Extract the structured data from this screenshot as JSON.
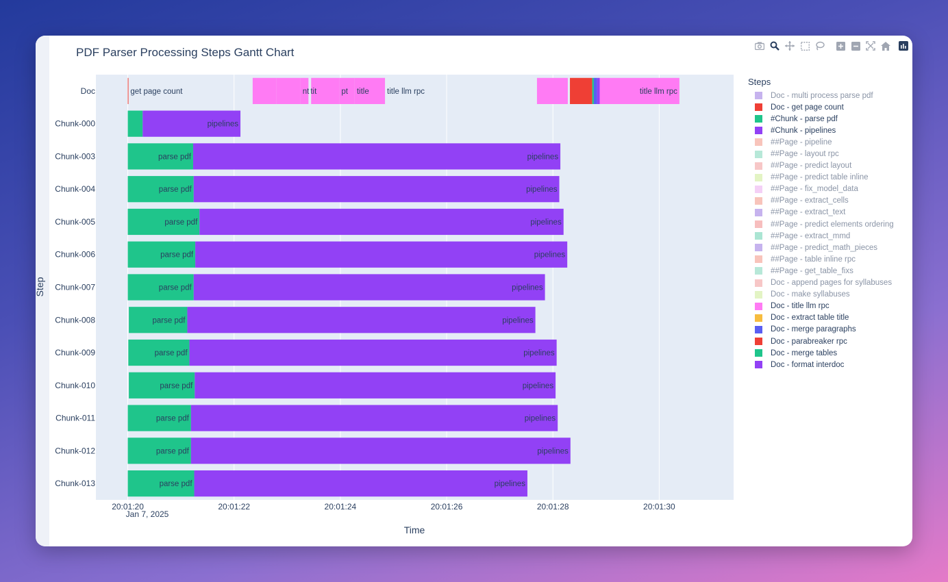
{
  "modebar": {
    "icons": [
      "camera-icon",
      "zoom-icon",
      "pan-icon",
      "box-select-icon",
      "lasso-select-icon",
      "zoom-in-icon",
      "zoom-out-icon",
      "autoscale-icon",
      "reset-axes-icon",
      "plotly-logo-icon"
    ]
  },
  "chart_data": {
    "type": "gantt",
    "title": "PDF Parser Processing Steps Gantt Chart",
    "xlabel": "Time",
    "ylabel": "Step",
    "x_date": "Jan 7, 2025",
    "xlim": [
      19.4,
      31.4
    ],
    "x_ticks": [
      {
        "value": 20,
        "label": "20:01:20"
      },
      {
        "value": 22,
        "label": "20:01:22"
      },
      {
        "value": 24,
        "label": "20:01:24"
      },
      {
        "value": 26,
        "label": "20:01:26"
      },
      {
        "value": 28,
        "label": "20:01:28"
      },
      {
        "value": 30,
        "label": "20:01:30"
      }
    ],
    "rows": [
      "Doc",
      "Chunk-000",
      "Chunk-003",
      "Chunk-004",
      "Chunk-005",
      "Chunk-006",
      "Chunk-007",
      "Chunk-008",
      "Chunk-009",
      "Chunk-010",
      "Chunk-011",
      "Chunk-012",
      "Chunk-013"
    ],
    "legend_title": "Steps",
    "legend_position": "right",
    "legend": [
      {
        "label": "Doc - multi process parse pdf",
        "color": "#b39ae8",
        "hidden": true
      },
      {
        "label": "Doc - get page count",
        "color": "#ef3f35",
        "hidden": false
      },
      {
        "label": "#Chunk - parse pdf",
        "color": "#1fc58b",
        "hidden": false
      },
      {
        "label": "#Chunk - pipelines",
        "color": "#9241f5",
        "hidden": false
      },
      {
        "label": "##Page - pipeline",
        "color": "#f5b0a4",
        "hidden": true
      },
      {
        "label": "##Page - layout rpc",
        "color": "#9fe0cb",
        "hidden": true
      },
      {
        "label": "##Page - predict layout",
        "color": "#f4b4b4",
        "hidden": true
      },
      {
        "label": "##Page - predict table inline",
        "color": "#d9f0b0",
        "hidden": true
      },
      {
        "label": "##Page - fix_model_data",
        "color": "#f0c0f3",
        "hidden": true
      },
      {
        "label": "##Page - extract_cells",
        "color": "#f5b0a4",
        "hidden": true
      },
      {
        "label": "##Page - extract_text",
        "color": "#b39ae8",
        "hidden": true
      },
      {
        "label": "##Page - predict elements ordering",
        "color": "#f4a8a8",
        "hidden": true
      },
      {
        "label": "##Page - extract_mmd",
        "color": "#8fdcc4",
        "hidden": true
      },
      {
        "label": "##Page - predict_math_pieces",
        "color": "#b39ae8",
        "hidden": true
      },
      {
        "label": "##Page - table inline rpc",
        "color": "#f5b0a4",
        "hidden": true
      },
      {
        "label": "##Page - get_table_fixs",
        "color": "#9fe0cb",
        "hidden": true
      },
      {
        "label": "Doc - append pages for syllabuses",
        "color": "#f4b4b4",
        "hidden": true
      },
      {
        "label": "Doc - make syllabuses",
        "color": "#d9f0b0",
        "hidden": true
      },
      {
        "label": "Doc - title llm rpc",
        "color": "#ff7bf4",
        "hidden": false
      },
      {
        "label": "Doc - extract table title",
        "color": "#f7bc3f",
        "hidden": false
      },
      {
        "label": "Doc - merge paragraphs",
        "color": "#5a5ef2",
        "hidden": false
      },
      {
        "label": "Doc - parabreaker rpc",
        "color": "#ef3f35",
        "hidden": false
      },
      {
        "label": "Doc - merge tables",
        "color": "#1fc58b",
        "hidden": false
      },
      {
        "label": "Doc - format interdoc",
        "color": "#9241f5",
        "hidden": false
      }
    ],
    "bars": [
      {
        "row": "Doc",
        "start": 20.0,
        "end": 20.01,
        "step": "Doc - get page count",
        "color": "#ef3f35",
        "label": "get page count",
        "label_pos": "outside"
      },
      {
        "row": "Doc",
        "start": 22.35,
        "end": 22.8,
        "step": "Doc - title llm rpc",
        "color": "#ff7bf4",
        "label": "",
        "label_pos": "none"
      },
      {
        "row": "Doc",
        "start": 22.8,
        "end": 23.25,
        "step": "Doc - title llm rpc",
        "color": "#ff7bf4",
        "label": "nt",
        "label_pos": "outside"
      },
      {
        "row": "Doc",
        "start": 23.25,
        "end": 23.4,
        "step": "Doc - title llm rpc",
        "color": "#ff7bf4",
        "label": "tit",
        "label_pos": "outside"
      },
      {
        "row": "Doc",
        "start": 23.45,
        "end": 23.98,
        "step": "Doc - title llm rpc",
        "color": "#ff7bf4",
        "label": "pt",
        "label_pos": "outside"
      },
      {
        "row": "Doc",
        "start": 23.98,
        "end": 24.27,
        "step": "Doc - title llm rpc",
        "color": "#ff7bf4",
        "label": "title",
        "label_pos": "outside"
      },
      {
        "row": "Doc",
        "start": 24.27,
        "end": 24.84,
        "step": "Doc - title llm rpc",
        "color": "#ff7bf4",
        "label": "title llm rpc",
        "label_pos": "outside"
      },
      {
        "row": "Doc",
        "start": 27.7,
        "end": 28.28,
        "step": "Doc - title llm rpc",
        "color": "#ff7bf4",
        "label": "",
        "label_pos": "none"
      },
      {
        "row": "Doc",
        "start": 28.32,
        "end": 28.74,
        "step": "Doc - parabreaker rpc",
        "color": "#ef3f35",
        "label": "",
        "label_pos": "none"
      },
      {
        "row": "Doc",
        "start": 28.74,
        "end": 28.77,
        "step": "Doc - merge tables",
        "color": "#1fc58b",
        "label": "",
        "label_pos": "none"
      },
      {
        "row": "Doc",
        "start": 28.77,
        "end": 28.83,
        "step": "Doc - merge paragraphs",
        "color": "#5a5ef2",
        "label": "",
        "label_pos": "none"
      },
      {
        "row": "Doc",
        "start": 28.83,
        "end": 28.88,
        "step": "Doc - format interdoc",
        "color": "#9241f5",
        "label": "",
        "label_pos": "none"
      },
      {
        "row": "Doc",
        "start": 28.88,
        "end": 30.38,
        "step": "Doc - title llm rpc",
        "color": "#ff7bf4",
        "label": "title llm rpc",
        "label_pos": "inside"
      },
      {
        "row": "Chunk-000",
        "start": 20.0,
        "end": 20.28,
        "step": "#Chunk - parse pdf",
        "color": "#1fc58b",
        "label": "",
        "label_pos": "none"
      },
      {
        "row": "Chunk-000",
        "start": 20.28,
        "end": 22.12,
        "step": "#Chunk - pipelines",
        "color": "#9241f5",
        "label": "pipelines",
        "label_pos": "inside"
      },
      {
        "row": "Chunk-003",
        "start": 20.0,
        "end": 21.23,
        "step": "#Chunk - parse pdf",
        "color": "#1fc58b",
        "label": "parse pdf",
        "label_pos": "inside"
      },
      {
        "row": "Chunk-003",
        "start": 21.23,
        "end": 28.14,
        "step": "#Chunk - pipelines",
        "color": "#9241f5",
        "label": "pipelines",
        "label_pos": "inside"
      },
      {
        "row": "Chunk-004",
        "start": 20.0,
        "end": 21.24,
        "step": "#Chunk - parse pdf",
        "color": "#1fc58b",
        "label": "parse pdf",
        "label_pos": "inside"
      },
      {
        "row": "Chunk-004",
        "start": 21.24,
        "end": 28.12,
        "step": "#Chunk - pipelines",
        "color": "#9241f5",
        "label": "pipelines",
        "label_pos": "inside"
      },
      {
        "row": "Chunk-005",
        "start": 20.0,
        "end": 21.35,
        "step": "#Chunk - parse pdf",
        "color": "#1fc58b",
        "label": "parse pdf",
        "label_pos": "inside"
      },
      {
        "row": "Chunk-005",
        "start": 21.35,
        "end": 28.2,
        "step": "#Chunk - pipelines",
        "color": "#9241f5",
        "label": "pipelines",
        "label_pos": "inside"
      },
      {
        "row": "Chunk-006",
        "start": 20.0,
        "end": 21.27,
        "step": "#Chunk - parse pdf",
        "color": "#1fc58b",
        "label": "parse pdf",
        "label_pos": "inside"
      },
      {
        "row": "Chunk-006",
        "start": 21.27,
        "end": 28.27,
        "step": "#Chunk - pipelines",
        "color": "#9241f5",
        "label": "pipelines",
        "label_pos": "inside"
      },
      {
        "row": "Chunk-007",
        "start": 20.0,
        "end": 21.24,
        "step": "#Chunk - parse pdf",
        "color": "#1fc58b",
        "label": "parse pdf",
        "label_pos": "inside"
      },
      {
        "row": "Chunk-007",
        "start": 21.24,
        "end": 27.85,
        "step": "#Chunk - pipelines",
        "color": "#9241f5",
        "label": "pipelines",
        "label_pos": "inside"
      },
      {
        "row": "Chunk-008",
        "start": 20.02,
        "end": 21.12,
        "step": "#Chunk - parse pdf",
        "color": "#1fc58b",
        "label": "parse pdf",
        "label_pos": "inside"
      },
      {
        "row": "Chunk-008",
        "start": 21.12,
        "end": 27.67,
        "step": "#Chunk - pipelines",
        "color": "#9241f5",
        "label": "pipelines",
        "label_pos": "inside"
      },
      {
        "row": "Chunk-009",
        "start": 20.01,
        "end": 21.16,
        "step": "#Chunk - parse pdf",
        "color": "#1fc58b",
        "label": "parse pdf",
        "label_pos": "inside"
      },
      {
        "row": "Chunk-009",
        "start": 21.16,
        "end": 28.07,
        "step": "#Chunk - pipelines",
        "color": "#9241f5",
        "label": "pipelines",
        "label_pos": "inside"
      },
      {
        "row": "Chunk-010",
        "start": 20.02,
        "end": 21.26,
        "step": "#Chunk - parse pdf",
        "color": "#1fc58b",
        "label": "parse pdf",
        "label_pos": "inside"
      },
      {
        "row": "Chunk-010",
        "start": 21.26,
        "end": 28.05,
        "step": "#Chunk - pipelines",
        "color": "#9241f5",
        "label": "pipelines",
        "label_pos": "inside"
      },
      {
        "row": "Chunk-011",
        "start": 20.0,
        "end": 21.19,
        "step": "#Chunk - parse pdf",
        "color": "#1fc58b",
        "label": "parse pdf",
        "label_pos": "inside"
      },
      {
        "row": "Chunk-011",
        "start": 21.19,
        "end": 28.09,
        "step": "#Chunk - pipelines",
        "color": "#9241f5",
        "label": "pipelines",
        "label_pos": "inside"
      },
      {
        "row": "Chunk-012",
        "start": 20.0,
        "end": 21.19,
        "step": "#Chunk - parse pdf",
        "color": "#1fc58b",
        "label": "parse pdf",
        "label_pos": "inside"
      },
      {
        "row": "Chunk-012",
        "start": 21.19,
        "end": 28.33,
        "step": "#Chunk - pipelines",
        "color": "#9241f5",
        "label": "pipelines",
        "label_pos": "inside"
      },
      {
        "row": "Chunk-013",
        "start": 20.0,
        "end": 21.25,
        "step": "#Chunk - parse pdf",
        "color": "#1fc58b",
        "label": "parse pdf",
        "label_pos": "inside"
      },
      {
        "row": "Chunk-013",
        "start": 21.25,
        "end": 27.52,
        "step": "#Chunk - pipelines",
        "color": "#9241f5",
        "label": "pipelines",
        "label_pos": "inside"
      }
    ]
  }
}
